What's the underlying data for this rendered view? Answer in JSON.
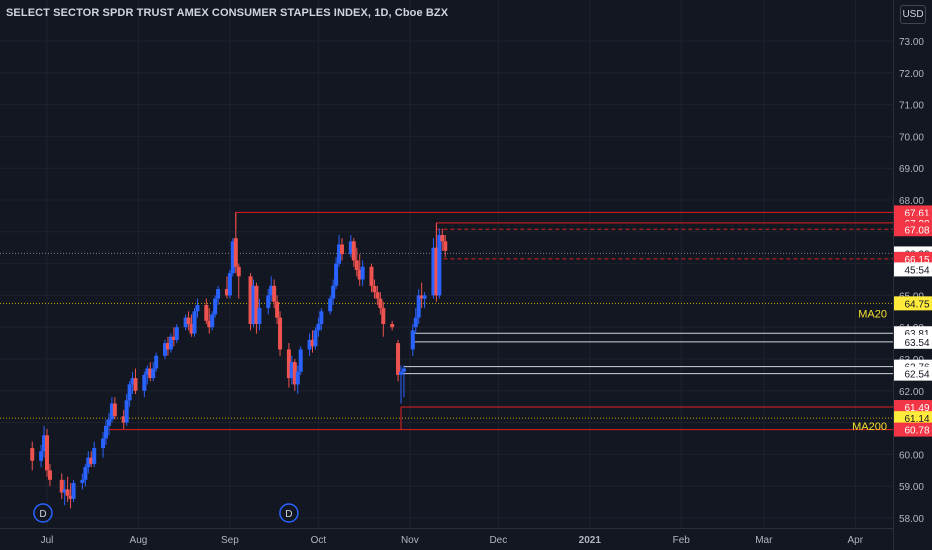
{
  "header": {
    "title": "SELECT SECTOR SPDR TRUST AMEX CONSUMER STAPLES INDEX, 1D, Cboe BZX",
    "currency_button": "USD"
  },
  "colors": {
    "background": "#131722",
    "up": "#2962ff",
    "down": "#ef5350",
    "grid": "#1e222d",
    "axis_text": "#b2b5be",
    "level_red": "#e02020",
    "level_white": "#d1d4dc",
    "ma_yellow": "#f5e130"
  },
  "chart_data": {
    "type": "candlestick",
    "ylim": [
      57.9,
      73.6
    ],
    "y_ticks": [
      "58.00",
      "59.00",
      "60.00",
      "61.00",
      "62.00",
      "63.00",
      "64.00",
      "65.00",
      "66.00",
      "67.00",
      "68.00",
      "69.00",
      "70.00",
      "71.00",
      "72.00",
      "73.00"
    ],
    "x_ticks": [
      "Jul",
      "Aug",
      "Sep",
      "Oct",
      "Nov",
      "Dec",
      "2021",
      "Feb",
      "Mar",
      "Apr"
    ],
    "grid": true,
    "candles": [
      {
        "date": "2020-06-26",
        "open": 60.2,
        "high": 60.4,
        "low": 59.5,
        "close": 59.8
      },
      {
        "date": "2020-06-29",
        "open": 59.8,
        "high": 60.3,
        "low": 59.6,
        "close": 60.1
      },
      {
        "date": "2020-06-30",
        "open": 60.1,
        "high": 60.9,
        "low": 59.9,
        "close": 60.6
      },
      {
        "date": "2020-07-01",
        "open": 60.6,
        "high": 60.8,
        "low": 59.3,
        "close": 59.5
      },
      {
        "date": "2020-07-02",
        "open": 59.5,
        "high": 59.7,
        "low": 59.0,
        "close": 59.2
      },
      {
        "date": "2020-07-06",
        "open": 59.2,
        "high": 59.4,
        "low": 58.6,
        "close": 58.8
      },
      {
        "date": "2020-07-07",
        "open": 58.8,
        "high": 59.2,
        "low": 58.4,
        "close": 58.9
      },
      {
        "date": "2020-07-08",
        "open": 58.9,
        "high": 59.3,
        "low": 58.5,
        "close": 58.7
      },
      {
        "date": "2020-07-09",
        "open": 58.7,
        "high": 59.1,
        "low": 58.3,
        "close": 58.6
      },
      {
        "date": "2020-07-10",
        "open": 58.6,
        "high": 59.2,
        "low": 58.5,
        "close": 59.1
      },
      {
        "date": "2020-07-13",
        "open": 59.1,
        "high": 59.4,
        "low": 58.9,
        "close": 59.2
      },
      {
        "date": "2020-07-14",
        "open": 59.2,
        "high": 59.7,
        "low": 59.0,
        "close": 59.6
      },
      {
        "date": "2020-07-15",
        "open": 59.6,
        "high": 60.1,
        "low": 59.4,
        "close": 59.9
      },
      {
        "date": "2020-07-16",
        "open": 59.9,
        "high": 60.1,
        "low": 59.6,
        "close": 59.7
      },
      {
        "date": "2020-07-17",
        "open": 59.7,
        "high": 60.4,
        "low": 59.6,
        "close": 60.2
      },
      {
        "date": "2020-07-20",
        "open": 60.2,
        "high": 60.7,
        "low": 59.9,
        "close": 60.5
      },
      {
        "date": "2020-07-21",
        "open": 60.5,
        "high": 61.1,
        "low": 60.3,
        "close": 60.9
      },
      {
        "date": "2020-07-22",
        "open": 60.9,
        "high": 61.3,
        "low": 60.6,
        "close": 61.1
      },
      {
        "date": "2020-07-23",
        "open": 61.1,
        "high": 61.8,
        "low": 61.0,
        "close": 61.6
      },
      {
        "date": "2020-07-24",
        "open": 61.6,
        "high": 61.8,
        "low": 61.1,
        "close": 61.2
      },
      {
        "date": "2020-07-27",
        "open": 61.2,
        "high": 61.4,
        "low": 60.8,
        "close": 61.0
      },
      {
        "date": "2020-07-28",
        "open": 61.0,
        "high": 61.9,
        "low": 60.9,
        "close": 61.7
      },
      {
        "date": "2020-07-29",
        "open": 61.7,
        "high": 62.3,
        "low": 61.5,
        "close": 62.2
      },
      {
        "date": "2020-07-30",
        "open": 62.2,
        "high": 62.6,
        "low": 61.9,
        "close": 62.4
      },
      {
        "date": "2020-07-31",
        "open": 62.4,
        "high": 62.7,
        "low": 61.9,
        "close": 62.0
      },
      {
        "date": "2020-08-03",
        "open": 62.0,
        "high": 62.6,
        "low": 61.8,
        "close": 62.5
      },
      {
        "date": "2020-08-04",
        "open": 62.5,
        "high": 62.8,
        "low": 62.2,
        "close": 62.7
      },
      {
        "date": "2020-08-05",
        "open": 62.7,
        "high": 62.9,
        "low": 62.3,
        "close": 62.4
      },
      {
        "date": "2020-08-06",
        "open": 62.4,
        "high": 62.9,
        "low": 62.3,
        "close": 62.7
      },
      {
        "date": "2020-08-07",
        "open": 62.7,
        "high": 63.2,
        "low": 62.6,
        "close": 63.1
      },
      {
        "date": "2020-08-10",
        "open": 63.1,
        "high": 63.6,
        "low": 63.0,
        "close": 63.5
      },
      {
        "date": "2020-08-11",
        "open": 63.5,
        "high": 63.7,
        "low": 63.1,
        "close": 63.3
      },
      {
        "date": "2020-08-12",
        "open": 63.3,
        "high": 63.8,
        "low": 63.2,
        "close": 63.7
      },
      {
        "date": "2020-08-13",
        "open": 63.7,
        "high": 64.0,
        "low": 63.4,
        "close": 63.6
      },
      {
        "date": "2020-08-14",
        "open": 63.6,
        "high": 64.1,
        "low": 63.5,
        "close": 64.0
      },
      {
        "date": "2020-08-17",
        "open": 64.0,
        "high": 64.4,
        "low": 63.9,
        "close": 64.3
      },
      {
        "date": "2020-08-18",
        "open": 64.3,
        "high": 64.5,
        "low": 63.9,
        "close": 64.1
      },
      {
        "date": "2020-08-19",
        "open": 64.1,
        "high": 64.4,
        "low": 63.7,
        "close": 63.8
      },
      {
        "date": "2020-08-20",
        "open": 63.8,
        "high": 64.6,
        "low": 63.7,
        "close": 64.5
      },
      {
        "date": "2020-08-21",
        "open": 64.5,
        "high": 64.9,
        "low": 64.3,
        "close": 64.7
      },
      {
        "date": "2020-08-24",
        "open": 64.7,
        "high": 64.9,
        "low": 64.1,
        "close": 64.2
      },
      {
        "date": "2020-08-25",
        "open": 64.2,
        "high": 64.6,
        "low": 63.8,
        "close": 64.0
      },
      {
        "date": "2020-08-26",
        "open": 64.0,
        "high": 64.5,
        "low": 63.9,
        "close": 64.4
      },
      {
        "date": "2020-08-27",
        "open": 64.4,
        "high": 65.0,
        "low": 64.3,
        "close": 64.9
      },
      {
        "date": "2020-08-28",
        "open": 64.9,
        "high": 65.3,
        "low": 64.7,
        "close": 65.2
      },
      {
        "date": "2020-08-31",
        "open": 65.2,
        "high": 65.6,
        "low": 64.9,
        "close": 65.0
      },
      {
        "date": "2020-09-01",
        "open": 65.0,
        "high": 65.8,
        "low": 64.9,
        "close": 65.7
      },
      {
        "date": "2020-09-02",
        "open": 65.7,
        "high": 66.8,
        "low": 65.6,
        "close": 66.7
      },
      {
        "date": "2020-09-03",
        "open": 66.8,
        "high": 67.61,
        "low": 65.7,
        "close": 65.9
      },
      {
        "date": "2020-09-04",
        "open": 65.9,
        "high": 66.0,
        "low": 64.9,
        "close": 65.6
      },
      {
        "date": "2020-09-08",
        "open": 65.6,
        "high": 65.7,
        "low": 63.9,
        "close": 64.1
      },
      {
        "date": "2020-09-09",
        "open": 64.1,
        "high": 65.5,
        "low": 64.0,
        "close": 65.3
      },
      {
        "date": "2020-09-10",
        "open": 65.3,
        "high": 65.4,
        "low": 63.8,
        "close": 64.1
      },
      {
        "date": "2020-09-11",
        "open": 64.1,
        "high": 64.9,
        "low": 63.9,
        "close": 64.6
      },
      {
        "date": "2020-09-14",
        "open": 64.6,
        "high": 65.2,
        "low": 64.4,
        "close": 65.0
      },
      {
        "date": "2020-09-15",
        "open": 65.0,
        "high": 65.6,
        "low": 64.8,
        "close": 65.3
      },
      {
        "date": "2020-09-16",
        "open": 65.3,
        "high": 65.5,
        "low": 64.6,
        "close": 64.8
      },
      {
        "date": "2020-09-17",
        "open": 64.8,
        "high": 65.0,
        "low": 64.1,
        "close": 64.3
      },
      {
        "date": "2020-09-18",
        "open": 64.3,
        "high": 64.5,
        "low": 63.1,
        "close": 63.3
      },
      {
        "date": "2020-09-21",
        "open": 63.3,
        "high": 63.5,
        "low": 62.1,
        "close": 62.4
      },
      {
        "date": "2020-09-22",
        "open": 62.4,
        "high": 63.1,
        "low": 62.2,
        "close": 62.9
      },
      {
        "date": "2020-09-23",
        "open": 62.9,
        "high": 63.0,
        "low": 62.0,
        "close": 62.2
      },
      {
        "date": "2020-09-24",
        "open": 62.2,
        "high": 62.8,
        "low": 61.9,
        "close": 62.6
      },
      {
        "date": "2020-09-25",
        "open": 62.6,
        "high": 63.4,
        "low": 62.5,
        "close": 63.3
      },
      {
        "date": "2020-09-28",
        "open": 63.3,
        "high": 63.8,
        "low": 63.1,
        "close": 63.6
      },
      {
        "date": "2020-09-29",
        "open": 63.6,
        "high": 63.9,
        "low": 63.2,
        "close": 63.4
      },
      {
        "date": "2020-09-30",
        "open": 63.4,
        "high": 64.0,
        "low": 63.3,
        "close": 63.9
      },
      {
        "date": "2020-10-01",
        "open": 63.9,
        "high": 64.3,
        "low": 63.7,
        "close": 64.1
      },
      {
        "date": "2020-10-02",
        "open": 64.1,
        "high": 64.6,
        "low": 63.9,
        "close": 64.5
      },
      {
        "date": "2020-10-05",
        "open": 64.5,
        "high": 65.0,
        "low": 64.4,
        "close": 64.9
      },
      {
        "date": "2020-10-06",
        "open": 64.9,
        "high": 65.5,
        "low": 64.7,
        "close": 65.3
      },
      {
        "date": "2020-10-07",
        "open": 65.3,
        "high": 66.2,
        "low": 65.2,
        "close": 66.0
      },
      {
        "date": "2020-10-08",
        "open": 66.0,
        "high": 66.9,
        "low": 65.9,
        "close": 66.6
      },
      {
        "date": "2020-10-09",
        "open": 66.6,
        "high": 66.8,
        "low": 66.1,
        "close": 66.3
      },
      {
        "date": "2020-10-12",
        "open": 66.3,
        "high": 66.9,
        "low": 66.2,
        "close": 66.7
      },
      {
        "date": "2020-10-13",
        "open": 66.7,
        "high": 66.8,
        "low": 65.9,
        "close": 66.1
      },
      {
        "date": "2020-10-14",
        "open": 66.1,
        "high": 66.5,
        "low": 65.6,
        "close": 65.8
      },
      {
        "date": "2020-10-15",
        "open": 65.8,
        "high": 66.3,
        "low": 65.3,
        "close": 65.5
      },
      {
        "date": "2020-10-16",
        "open": 65.5,
        "high": 66.1,
        "low": 65.3,
        "close": 65.9
      },
      {
        "date": "2020-10-19",
        "open": 65.9,
        "high": 66.0,
        "low": 65.1,
        "close": 65.3
      },
      {
        "date": "2020-10-20",
        "open": 65.3,
        "high": 65.5,
        "low": 64.9,
        "close": 65.1
      },
      {
        "date": "2020-10-21",
        "open": 65.1,
        "high": 65.3,
        "low": 64.7,
        "close": 64.9
      },
      {
        "date": "2020-10-22",
        "open": 64.9,
        "high": 65.1,
        "low": 64.4,
        "close": 64.6
      },
      {
        "date": "2020-10-23",
        "open": 64.6,
        "high": 64.8,
        "low": 63.7,
        "close": 64.1
      },
      {
        "date": "2020-10-26",
        "open": 64.1,
        "high": 64.2,
        "low": 63.9,
        "close": 64.0
      },
      {
        "date": "2020-10-28",
        "open": 63.5,
        "high": 63.6,
        "low": 62.3,
        "close": 62.5
      },
      {
        "date": "2020-10-29",
        "open": 62.5,
        "high": 62.8,
        "low": 61.6,
        "close": 62.6
      },
      {
        "date": "2020-10-30",
        "open": 62.6,
        "high": 62.8,
        "low": 61.8,
        "close": 62.7
      },
      {
        "date": "2020-11-02",
        "open": 63.3,
        "high": 64.1,
        "low": 63.1,
        "close": 63.9
      },
      {
        "date": "2020-11-03",
        "open": 64.0,
        "high": 64.6,
        "low": 63.8,
        "close": 64.3
      },
      {
        "date": "2020-11-04",
        "open": 64.3,
        "high": 65.2,
        "low": 64.1,
        "close": 65.0
      },
      {
        "date": "2020-11-05",
        "open": 65.0,
        "high": 65.4,
        "low": 64.6,
        "close": 64.9
      },
      {
        "date": "2020-11-06",
        "open": 64.9,
        "high": 65.1,
        "low": 64.6,
        "close": 65.0
      },
      {
        "date": "2020-11-09",
        "open": 65.0,
        "high": 66.8,
        "low": 64.9,
        "close": 66.5
      },
      {
        "date": "2020-11-10",
        "open": 66.5,
        "high": 67.28,
        "low": 64.8,
        "close": 65.0
      },
      {
        "date": "2020-11-11",
        "open": 65.0,
        "high": 67.1,
        "low": 64.9,
        "close": 66.9
      },
      {
        "date": "2020-11-12",
        "open": 66.9,
        "high": 67.1,
        "low": 66.4,
        "close": 66.7
      },
      {
        "date": "2020-11-13",
        "open": 66.7,
        "high": 66.9,
        "low": 66.2,
        "close": 66.4
      }
    ],
    "levels": [
      {
        "value": 67.61,
        "label": "67.61",
        "style": "red"
      },
      {
        "value": 67.28,
        "label": "67.28",
        "style": "red"
      },
      {
        "value": 67.08,
        "label": "67.08",
        "style": "red-dashed"
      },
      {
        "value": 66.32,
        "label": "66.32",
        "style": "current"
      },
      {
        "value": 66.15,
        "label": "66.15",
        "style": "red-dashed"
      },
      {
        "value": 64.75,
        "label": "64.75",
        "style": "ma",
        "name": "MA20"
      },
      {
        "value": 63.81,
        "label": "63.81",
        "style": "white"
      },
      {
        "value": 63.54,
        "label": "63.54",
        "style": "white"
      },
      {
        "value": 62.76,
        "label": "62.76",
        "style": "white"
      },
      {
        "value": 62.54,
        "label": "62.54",
        "style": "white"
      },
      {
        "value": 61.49,
        "label": "61.49",
        "style": "red"
      },
      {
        "value": 61.14,
        "label": "61.14",
        "style": "ma",
        "name": "MA200"
      },
      {
        "value": 60.78,
        "label": "60.78",
        "style": "red"
      }
    ],
    "countdown": "45:54",
    "markers": [
      "D",
      "D"
    ]
  }
}
